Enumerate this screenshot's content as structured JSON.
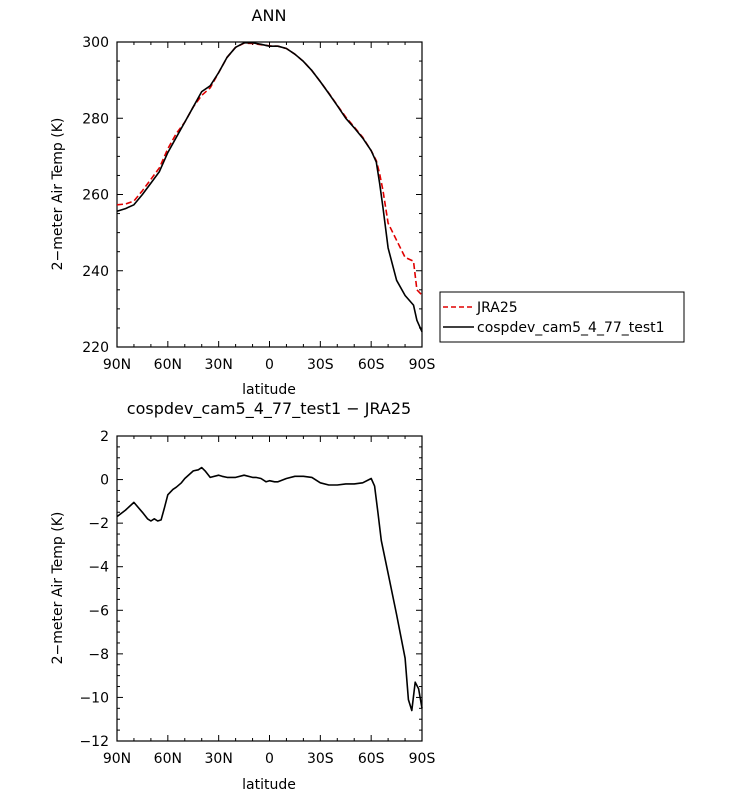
{
  "chart_data": [
    {
      "type": "line",
      "title": "ANN",
      "xlabel": "latitude",
      "ylabel": "2−meter Air Temp (K)",
      "x_ticks": [
        "90N",
        "60N",
        "30N",
        "0",
        "30S",
        "60S",
        "90S"
      ],
      "y_ticks": [
        "220",
        "240",
        "260",
        "280",
        "300"
      ],
      "xlim": [
        90,
        -90
      ],
      "ylim": [
        220,
        300
      ],
      "grid": false,
      "legend": "right",
      "series": [
        {
          "name": "JRA25",
          "style": "dashed",
          "color": "#e00000",
          "x": [
            90,
            85,
            80,
            75,
            70,
            65,
            60,
            55,
            50,
            45,
            40,
            35,
            30,
            25,
            20,
            15,
            10,
            5,
            0,
            -5,
            -10,
            -15,
            -20,
            -25,
            -30,
            -35,
            -40,
            -45,
            -50,
            -55,
            -60,
            -63,
            -65,
            -67,
            -70,
            -75,
            -80,
            -85,
            -87,
            -90
          ],
          "y": [
            257.3,
            257.5,
            258.3,
            261,
            264,
            267,
            272,
            276,
            279,
            283,
            286,
            288,
            292,
            296,
            298.6,
            299.7,
            299.6,
            299.3,
            299,
            298.9,
            298.3,
            296.8,
            294.9,
            292.5,
            289.6,
            286.6,
            283.4,
            280.3,
            277.7,
            275,
            271.5,
            268.9,
            265.5,
            261,
            252.5,
            248,
            243.5,
            242.5,
            235,
            233.6
          ]
        },
        {
          "name": "cospdev_cam5_4_77_test1",
          "style": "solid",
          "color": "#000000",
          "x": [
            90,
            85,
            80,
            75,
            70,
            65,
            60,
            55,
            50,
            45,
            40,
            35,
            30,
            25,
            20,
            15,
            10,
            5,
            0,
            -5,
            -10,
            -15,
            -20,
            -25,
            -30,
            -35,
            -40,
            -45,
            -50,
            -55,
            -60,
            -63,
            -65,
            -67,
            -70,
            -75,
            -80,
            -85,
            -87,
            -90
          ],
          "y": [
            255.6,
            256.3,
            257.3,
            260,
            263,
            266,
            271,
            275,
            279,
            283,
            287,
            288.5,
            292,
            296,
            298.6,
            299.8,
            299.8,
            299.4,
            298.9,
            298.9,
            298.3,
            296.8,
            294.9,
            292.5,
            289.6,
            286.5,
            283.3,
            280,
            277.5,
            274.8,
            271.5,
            268.5,
            263,
            256.5,
            246,
            237.5,
            233.5,
            231,
            227,
            224
          ]
        }
      ]
    },
    {
      "type": "line",
      "title": "cospdev_cam5_4_77_test1 − JRA25",
      "xlabel": "latitude",
      "ylabel": "2−meter Air Temp (K)",
      "x_ticks": [
        "90N",
        "60N",
        "30N",
        "0",
        "30S",
        "60S",
        "90S"
      ],
      "y_ticks": [
        "−12",
        "−10",
        "−8",
        "−6",
        "−4",
        "−2",
        "0",
        "2"
      ],
      "xlim": [
        90,
        -90
      ],
      "ylim": [
        -12,
        2
      ],
      "grid": false,
      "series": [
        {
          "style": "solid",
          "color": "#000000",
          "x": [
            90,
            85,
            80,
            75,
            72,
            70,
            68,
            66,
            64,
            62,
            60,
            57,
            55,
            52,
            50,
            45,
            42,
            40,
            38,
            35,
            30,
            28,
            25,
            20,
            15,
            10,
            8,
            5,
            2,
            0,
            -3,
            -5,
            -10,
            -15,
            -20,
            -25,
            -30,
            -35,
            -40,
            -45,
            -50,
            -55,
            -60,
            -62,
            -64,
            -66,
            -70,
            -75,
            -80,
            -82,
            -84,
            -86,
            -88,
            -90
          ],
          "y": [
            -1.7,
            -1.4,
            -1.05,
            -1.5,
            -1.8,
            -1.9,
            -1.8,
            -1.9,
            -1.85,
            -1.3,
            -0.7,
            -0.45,
            -0.35,
            -0.15,
            0.05,
            0.4,
            0.45,
            0.55,
            0.4,
            0.1,
            0.2,
            0.15,
            0.1,
            0.1,
            0.2,
            0.1,
            0.1,
            0.05,
            -0.1,
            -0.05,
            -0.1,
            -0.1,
            0.05,
            0.15,
            0.15,
            0.1,
            -0.15,
            -0.25,
            -0.25,
            -0.2,
            -0.2,
            -0.15,
            0.05,
            -0.3,
            -1.5,
            -2.8,
            -4.3,
            -6.2,
            -8.2,
            -10.1,
            -10.6,
            -9.3,
            -9.6,
            -10.5
          ]
        }
      ]
    }
  ]
}
